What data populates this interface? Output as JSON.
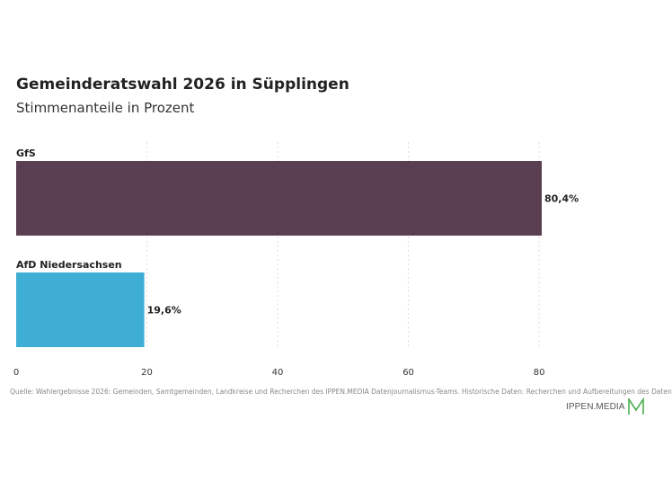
{
  "chart_data": {
    "type": "bar",
    "orientation": "horizontal",
    "title": "Gemeinderatswahl 2026 in Süpplingen",
    "subtitle": "Stimmenanteile in Prozent",
    "categories": [
      "GfS",
      "AfD Niedersachsen"
    ],
    "values": [
      80.4,
      19.6
    ],
    "value_labels": [
      "80,4%",
      "19,6%"
    ],
    "colors": [
      "#5a3e51",
      "#3eaed4"
    ],
    "xlim": [
      0,
      80.4
    ],
    "xticks": [
      0,
      20,
      40,
      60,
      80
    ],
    "xtick_labels": [
      "0",
      "20",
      "40",
      "60",
      "80"
    ],
    "grid": true,
    "legend": "none"
  },
  "footer": {
    "source": "Quelle: Wahlergebnisse 2026: Gemeinden, Samtgemeinden, Landkreise und Recherchen des IPPEN.MEDIA Datenjournalismus-Teams. Historische Daten: Recherchen und Aufbereitungen des Daten",
    "logo_text": "IPPEN.MEDIA",
    "logo_color": "#4caf50"
  }
}
